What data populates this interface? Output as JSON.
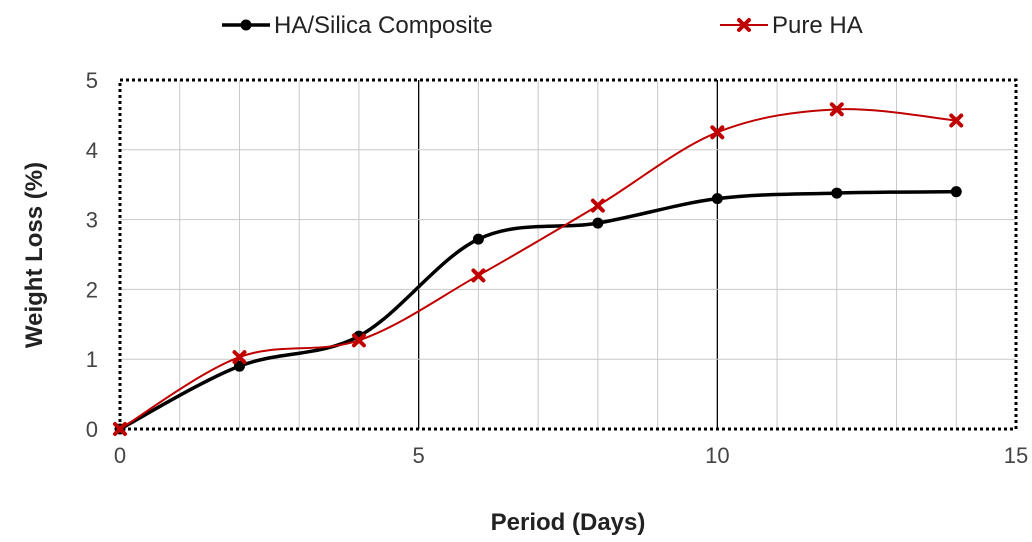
{
  "chart_data": {
    "type": "line",
    "title": "",
    "xlabel": "Period (Days)",
    "ylabel": "Weight Loss (%)",
    "xlim": [
      0,
      15
    ],
    "ylim": [
      0,
      5
    ],
    "xticks": [
      0,
      5,
      10,
      15
    ],
    "yticks": [
      0,
      1,
      2,
      3,
      4,
      5
    ],
    "grid": true,
    "legend_position": "top",
    "series": [
      {
        "name": "HA/Silica Composite",
        "color": "#000000",
        "marker": "circle",
        "x": [
          0,
          2,
          4,
          6,
          8,
          10,
          12,
          14
        ],
        "y": [
          0,
          0.9,
          1.33,
          2.72,
          2.95,
          3.3,
          3.38,
          3.4
        ]
      },
      {
        "name": "Pure HA",
        "color": "#c00000",
        "marker": "x",
        "x": [
          0,
          2,
          4,
          6,
          8,
          10,
          12,
          14
        ],
        "y": [
          0,
          1.03,
          1.27,
          2.2,
          3.2,
          4.25,
          4.58,
          4.42
        ]
      }
    ]
  }
}
